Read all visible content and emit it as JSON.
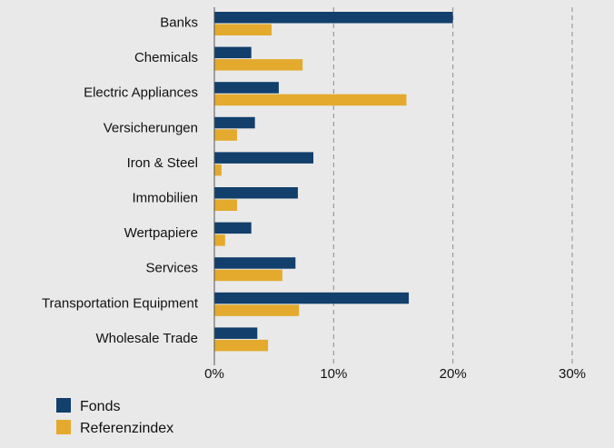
{
  "chart_data": {
    "type": "bar",
    "orientation": "horizontal",
    "categories": [
      "Banks",
      "Chemicals",
      "Electric Appliances",
      "Versicherungen",
      "Iron & Steel",
      "Immobilien",
      "Wertpapiere",
      "Services",
      "Transportation Equipment",
      "Wholesale Trade"
    ],
    "series": [
      {
        "name": "Fonds",
        "values": [
          20.0,
          3.1,
          5.4,
          3.4,
          8.3,
          7.0,
          3.1,
          6.8,
          16.3,
          3.6
        ]
      },
      {
        "name": "Referenzindex",
        "values": [
          4.8,
          7.4,
          16.1,
          1.9,
          0.6,
          1.9,
          0.9,
          5.7,
          7.1,
          4.5
        ]
      }
    ],
    "xlim": [
      0,
      30
    ],
    "xticks": [
      "0%",
      "10%",
      "20%",
      "30%"
    ],
    "xtick_values": [
      0,
      10,
      20,
      30
    ],
    "grid": "vertical-dashed",
    "legend_position": "bottom-left",
    "colors": {
      "Fonds": "#123f6b",
      "Referenzindex": "#e3aa2d",
      "grid": "#8a8a8a",
      "axis": "#555555"
    }
  }
}
